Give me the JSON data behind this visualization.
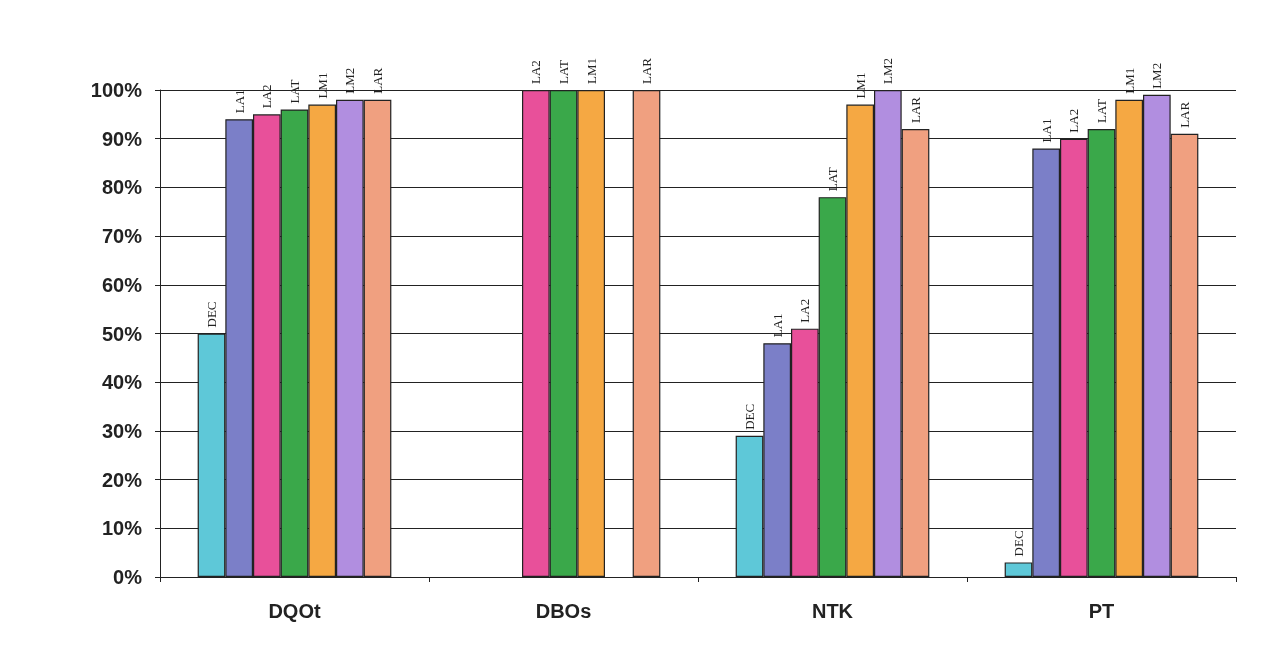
{
  "chart_data": {
    "type": "bar",
    "categories": [
      "DQOt",
      "DBOs",
      "NTK",
      "PT"
    ],
    "series": [
      {
        "name": "DEC",
        "color": "#5ec8d8",
        "values": [
          50,
          null,
          29,
          3
        ]
      },
      {
        "name": "LA1",
        "color": "#7b7fc8",
        "values": [
          94,
          null,
          48,
          88
        ]
      },
      {
        "name": "LA2",
        "color": "#e8509a",
        "values": [
          95,
          100,
          51,
          90
        ]
      },
      {
        "name": "LAT",
        "color": "#3aa84a",
        "values": [
          96,
          100,
          78,
          92
        ]
      },
      {
        "name": "LM1",
        "color": "#f5a843",
        "values": [
          97,
          100,
          97,
          98
        ]
      },
      {
        "name": "LM2",
        "color": "#b18ee0",
        "values": [
          98,
          null,
          100,
          99
        ]
      },
      {
        "name": "LAR",
        "color": "#f0a080",
        "values": [
          98,
          100,
          92,
          91
        ]
      }
    ],
    "ylim": [
      0,
      100
    ],
    "yticks": [
      {
        "value": 0,
        "label": "0%"
      },
      {
        "value": 10,
        "label": "10%"
      },
      {
        "value": 20,
        "label": "20%"
      },
      {
        "value": 30,
        "label": "30%"
      },
      {
        "value": 40,
        "label": "40%"
      },
      {
        "value": 50,
        "label": "50%"
      },
      {
        "value": 60,
        "label": "60%"
      },
      {
        "value": 70,
        "label": "70%"
      },
      {
        "value": 80,
        "label": "80%"
      },
      {
        "value": 90,
        "label": "90%"
      },
      {
        "value": 100,
        "label": "100%"
      }
    ],
    "grid": "y",
    "legend": false
  }
}
